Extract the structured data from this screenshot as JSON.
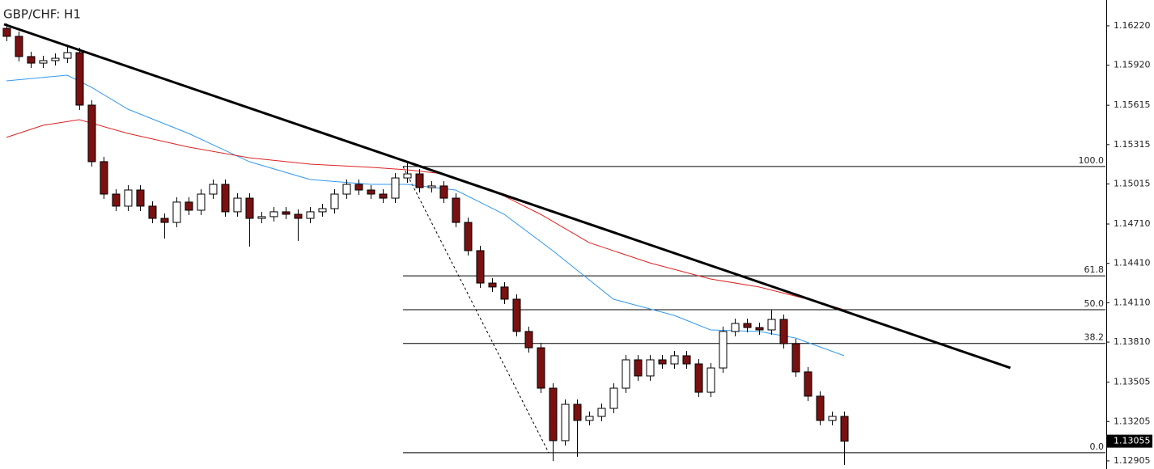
{
  "chart_data": {
    "type": "candlestick",
    "title": "GBP/CHF: H1",
    "xlim": [
      -0.53,
      90.53
    ],
    "ylim": [
      1.12843,
      1.16417
    ],
    "yticks": [
      {
        "value": 1.1622,
        "label": "1.16220"
      },
      {
        "value": 1.1592,
        "label": "1.15920"
      },
      {
        "value": 1.15615,
        "label": "1.15615"
      },
      {
        "value": 1.15315,
        "label": "1.15315"
      },
      {
        "value": 1.15015,
        "label": "1.15015"
      },
      {
        "value": 1.1471,
        "label": "1.14710"
      },
      {
        "value": 1.1441,
        "label": "1.14410"
      },
      {
        "value": 1.1411,
        "label": "1.14110"
      },
      {
        "value": 1.1381,
        "label": "1.13810"
      },
      {
        "value": 1.13505,
        "label": "1.13505"
      },
      {
        "value": 1.13205,
        "label": "1.13205"
      },
      {
        "value": 1.12905,
        "label": "1.12905"
      }
    ],
    "up_color": "#ffffff",
    "down_color": "#7a1010",
    "wick_color": "#000000",
    "open": [
      1.16201,
      1.1614,
      1.15986,
      1.15936,
      1.15955,
      1.15973,
      1.16016,
      1.15616,
      1.15185,
      1.14938,
      1.14846,
      1.14969,
      1.14846,
      1.14753,
      1.14722,
      1.14877,
      1.14815,
      1.14938,
      1.15012,
      1.14803,
      1.14907,
      1.14753,
      1.14766,
      1.14803,
      1.14784,
      1.14753,
      1.14803,
      1.14827,
      1.14938,
      1.15012,
      1.14969,
      1.14938,
      1.14907,
      1.15061,
      1.15092,
      1.14987,
      1.15,
      1.14907,
      1.14722,
      1.14507,
      1.1426,
      1.1423,
      1.14137,
      1.13891,
      1.13767,
      1.13459,
      1.13059,
      1.13336,
      1.13213,
      1.13244,
      1.13305,
      1.13459,
      1.13675,
      1.13552,
      1.13675,
      1.13644,
      1.13706,
      1.13644,
      1.13428,
      1.13613,
      1.13891,
      1.13952,
      1.13921,
      1.13903,
      1.13983,
      1.13798,
      1.13583,
      1.13398,
      1.13213,
      1.13244
    ],
    "high": [
      1.16238,
      1.16177,
      1.16023,
      1.15992,
      1.1601,
      1.1606,
      1.16053,
      1.15653,
      1.15222,
      1.14975,
      1.15006,
      1.15006,
      1.14883,
      1.1479,
      1.14914,
      1.14914,
      1.14975,
      1.15049,
      1.15049,
      1.14944,
      1.14944,
      1.14803,
      1.1484,
      1.1484,
      1.14821,
      1.1484,
      1.14864,
      1.14975,
      1.15049,
      1.15049,
      1.15006,
      1.14975,
      1.15098,
      1.15185,
      1.15129,
      1.15037,
      1.15037,
      1.14944,
      1.14759,
      1.14544,
      1.14297,
      1.14267,
      1.14174,
      1.13928,
      1.13804,
      1.13496,
      1.13373,
      1.13373,
      1.13281,
      1.13342,
      1.13496,
      1.13712,
      1.13712,
      1.13712,
      1.13712,
      1.13743,
      1.13743,
      1.13681,
      1.1365,
      1.13928,
      1.13989,
      1.13989,
      1.13958,
      1.14057,
      1.1402,
      1.13835,
      1.1362,
      1.13435,
      1.13281,
      1.13281
    ],
    "low": [
      1.16103,
      1.15949,
      1.15899,
      1.15899,
      1.15918,
      1.15936,
      1.15579,
      1.15148,
      1.14901,
      1.14809,
      1.14809,
      1.14809,
      1.14716,
      1.14599,
      1.14685,
      1.14778,
      1.14778,
      1.14901,
      1.14766,
      1.14766,
      1.14538,
      1.14716,
      1.14729,
      1.14747,
      1.14581,
      1.14716,
      1.14766,
      1.1479,
      1.14901,
      1.14932,
      1.14901,
      1.1487,
      1.1487,
      1.15024,
      1.1495,
      1.1495,
      1.1487,
      1.14685,
      1.1447,
      1.14223,
      1.14193,
      1.141,
      1.13854,
      1.1373,
      1.13422,
      1.12905,
      1.13022,
      1.12936,
      1.13176,
      1.13207,
      1.13268,
      1.13422,
      1.13515,
      1.13515,
      1.13607,
      1.13607,
      1.13607,
      1.13391,
      1.13391,
      1.13576,
      1.13854,
      1.13884,
      1.13866,
      1.13866,
      1.13761,
      1.13546,
      1.13361,
      1.13176,
      1.13176,
      1.12874
    ],
    "close": [
      1.1614,
      1.15986,
      1.15936,
      1.15955,
      1.15973,
      1.16016,
      1.15616,
      1.15185,
      1.14938,
      1.14846,
      1.14969,
      1.14846,
      1.14753,
      1.14722,
      1.14877,
      1.14815,
      1.14938,
      1.15012,
      1.14803,
      1.14907,
      1.14753,
      1.14766,
      1.14803,
      1.14784,
      1.14753,
      1.14803,
      1.14827,
      1.14938,
      1.15012,
      1.14969,
      1.14938,
      1.14907,
      1.15061,
      1.15092,
      1.14987,
      1.15,
      1.14907,
      1.14722,
      1.14507,
      1.1426,
      1.1423,
      1.14137,
      1.13891,
      1.13767,
      1.13459,
      1.13059,
      1.13336,
      1.13213,
      1.13244,
      1.13305,
      1.13459,
      1.13675,
      1.13552,
      1.13675,
      1.13644,
      1.13706,
      1.13644,
      1.13428,
      1.13613,
      1.13891,
      1.13952,
      1.13921,
      1.13903,
      1.13983,
      1.13798,
      1.13583,
      1.13398,
      1.13213,
      1.13244,
      1.13055
    ],
    "lines": [
      {
        "color": "#3399ee",
        "x": [
          0,
          5,
          7,
          10,
          15,
          20,
          25,
          30,
          33,
          37,
          41,
          45,
          50,
          55,
          58,
          62,
          65,
          69
        ],
        "values": [
          1.15801,
          1.15844,
          1.15752,
          1.15585,
          1.154,
          1.15185,
          1.15049,
          1.15012,
          1.15012,
          1.14969,
          1.14784,
          1.14507,
          1.14137,
          1.14014,
          1.13903,
          1.13891,
          1.13841,
          1.13706
        ]
      },
      {
        "color": "#dd2222",
        "x": [
          0,
          3,
          6,
          10,
          15,
          20,
          25,
          30,
          33,
          36,
          40,
          44,
          48,
          53,
          58,
          62,
          66,
          69
        ],
        "values": [
          1.1537,
          1.15462,
          1.15505,
          1.154,
          1.15296,
          1.15215,
          1.15166,
          1.15142,
          1.15123,
          1.15092,
          1.14969,
          1.14784,
          1.14568,
          1.14414,
          1.14291,
          1.1423,
          1.14137,
          1.14057
        ]
      },
      {
        "color": "#000000",
        "x": [
          -0.2,
          82.7
        ],
        "values": [
          1.16232,
          1.13614
        ]
      }
    ],
    "fib": {
      "x": [
        32.67,
        44.67
      ],
      "values": [
        1.15148,
        1.12967
      ],
      "levels": [
        {
          "label": "100.0",
          "price": 1.15148
        },
        {
          "label": "61.8",
          "price": 1.14315
        },
        {
          "label": "50.0",
          "price": 1.14057
        },
        {
          "label": "38.2",
          "price": 1.138
        },
        {
          "label": "0.0",
          "price": 1.12967
        }
      ]
    },
    "current_price": {
      "value": 1.13055,
      "label": "1.13055"
    }
  }
}
